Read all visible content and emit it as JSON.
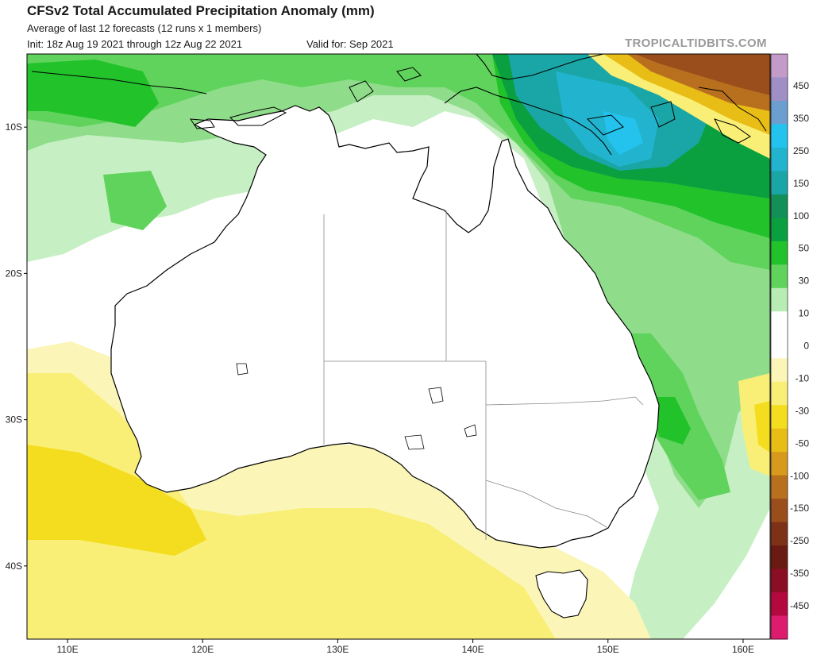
{
  "header": {
    "title": "CFSv2 Total Accumulated Precipitation Anomaly (mm)",
    "subtitle": "Average of last 12 forecasts (12 runs x 1 members)",
    "init": "Init: 18z Aug 19 2021 through 12z Aug 22 2021",
    "valid": "Valid for: Sep 2021",
    "brand": "TROPICALTIDBITS.COM"
  },
  "map": {
    "lon_range": [
      107,
      162
    ],
    "lat_range": [
      -45,
      -5
    ],
    "lon_ticks": [
      {
        "value": 110,
        "label": "110E"
      },
      {
        "value": 120,
        "label": "120E"
      },
      {
        "value": 130,
        "label": "130E"
      },
      {
        "value": 140,
        "label": "140E"
      },
      {
        "value": 150,
        "label": "150E"
      },
      {
        "value": 160,
        "label": "160E"
      }
    ],
    "lat_ticks": [
      {
        "value": -10,
        "label": "10S"
      },
      {
        "value": -20,
        "label": "20S"
      },
      {
        "value": -30,
        "label": "30S"
      },
      {
        "value": -40,
        "label": "40S"
      }
    ]
  },
  "colorbar": {
    "labels": [
      "450",
      "350",
      "250",
      "150",
      "100",
      "50",
      "30",
      "10",
      "0",
      "-10",
      "-30",
      "-50",
      "-100",
      "-150",
      "-250",
      "-350",
      "-450"
    ],
    "colors": [
      "#c39bc8",
      "#9f8fc6",
      "#6a9fd0",
      "#23c3ee",
      "#22b4cf",
      "#1aa6a6",
      "#138f58",
      "#0aa040",
      "#22c22b",
      "#5fd35c",
      "#b8ecb5",
      "#ffffff",
      "#ffffff",
      "#fbf6b7",
      "#f9ef76",
      "#f3dd1e",
      "#e8bd16",
      "#d89a1d",
      "#b8701e",
      "#9a4e1c",
      "#7d3218",
      "#691a12",
      "#8a0e24",
      "#b4093f",
      "#dd1b6f"
    ]
  }
}
